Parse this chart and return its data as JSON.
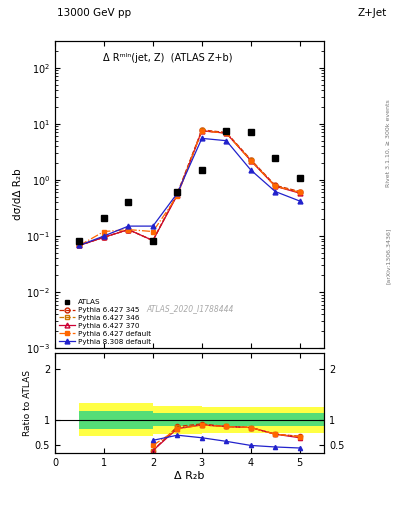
{
  "title_top": "13000 GeV pp",
  "title_right": "Z+Jet",
  "annotation": "Δ Rᵐᴵⁿ(jet, Z)  (ATLAS Z+b)",
  "watermark": "ATLAS_2020_I1788444",
  "right_label": "Rivet 3.1.10, ≥ 300k events",
  "arxiv_label": "[arXiv:1306.3436]",
  "ylabel_main": "dσ/dΔ R₂b",
  "ylabel_ratio": "Ratio to ATLAS",
  "xlabel": "Δ R₂b",
  "xlim": [
    0,
    5.5
  ],
  "ylim_main": [
    0.001,
    300
  ],
  "ylim_ratio": [
    0.35,
    2.3
  ],
  "x_atlas": [
    0.5,
    1.0,
    1.5,
    2.0,
    2.5,
    3.0,
    3.5,
    4.0,
    4.5,
    5.0
  ],
  "y_atlas": [
    0.083,
    0.21,
    0.4,
    0.083,
    0.6,
    1.5,
    7.5,
    7.0,
    2.5,
    1.1
  ],
  "pythia_x": [
    0.5,
    1.0,
    1.5,
    2.0,
    2.5,
    3.0,
    3.5,
    4.0,
    4.5,
    5.0
  ],
  "p6_345_data": [
    0.068,
    0.095,
    0.13,
    0.083,
    0.58,
    7.8,
    7.0,
    2.3,
    0.8,
    0.62
  ],
  "p6_346_data": [
    0.068,
    0.095,
    0.13,
    0.083,
    0.56,
    7.6,
    6.8,
    2.25,
    0.78,
    0.6
  ],
  "p6_370_data": [
    0.068,
    0.095,
    0.13,
    0.083,
    0.54,
    7.5,
    6.8,
    2.2,
    0.77,
    0.58
  ],
  "p6_default_data": [
    0.068,
    0.12,
    0.13,
    0.12,
    0.52,
    7.5,
    6.8,
    2.2,
    0.77,
    0.6
  ],
  "p8_default_data": [
    0.068,
    0.1,
    0.15,
    0.15,
    0.58,
    5.5,
    5.0,
    1.5,
    0.62,
    0.42
  ],
  "ratio_x": [
    2.0,
    2.5,
    3.0,
    3.5,
    4.0,
    4.5,
    5.0
  ],
  "ratio_p6_345": [
    0.4,
    0.87,
    0.92,
    0.87,
    0.85,
    0.72,
    0.68
  ],
  "ratio_p6_346": [
    0.4,
    0.86,
    0.9,
    0.87,
    0.85,
    0.72,
    0.67
  ],
  "ratio_p6_370": [
    0.4,
    0.83,
    0.9,
    0.87,
    0.85,
    0.72,
    0.65
  ],
  "ratio_p6_default": [
    0.5,
    0.82,
    0.9,
    0.87,
    0.85,
    0.72,
    0.67
  ],
  "ratio_p8_default": [
    0.6,
    0.7,
    0.65,
    0.58,
    0.5,
    0.47,
    0.45
  ],
  "band_x": [
    0.5,
    1.5,
    2.5,
    3.5,
    4.5,
    5.5
  ],
  "band_green_low": [
    0.83,
    0.83,
    0.87,
    0.87,
    0.87,
    0.87
  ],
  "band_green_high": [
    1.17,
    1.17,
    1.13,
    1.13,
    1.13,
    1.13
  ],
  "band_yellow_low": [
    0.68,
    0.68,
    0.73,
    0.75,
    0.75,
    0.75
  ],
  "band_yellow_high": [
    1.32,
    1.32,
    1.27,
    1.25,
    1.25,
    1.25
  ],
  "color_p6_345": "#cc2200",
  "color_p6_346": "#cc7700",
  "color_p6_370": "#cc0033",
  "color_p6_default": "#ff6600",
  "color_p8_default": "#2222cc",
  "color_atlas": "#000000",
  "xticks": [
    0,
    1,
    2,
    3,
    4,
    5
  ],
  "xtick_labels": [
    "0",
    "1",
    "2",
    "3",
    "4",
    "5"
  ]
}
